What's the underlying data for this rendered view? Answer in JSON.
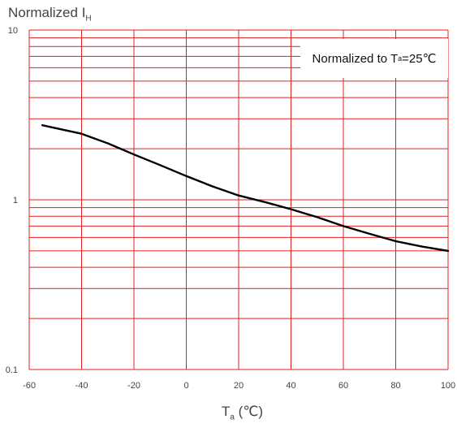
{
  "chart_data": {
    "type": "line",
    "yscale": "log",
    "ylim": [
      0.1,
      10
    ],
    "xlim": [
      -60,
      100
    ],
    "x_ticks": [
      -60,
      -40,
      -20,
      0,
      20,
      40,
      60,
      80,
      100
    ],
    "x_tick_labels": [
      "-60",
      "-40",
      "-20",
      "0",
      "20",
      "40",
      "60",
      "80",
      "100"
    ],
    "y_ticks": [
      0.1,
      1,
      10
    ],
    "y_tick_labels": [
      "0.1",
      "1",
      "10"
    ],
    "ylabel": {
      "main": "Normalized I",
      "sub": "H"
    },
    "xlabel": {
      "main": "T",
      "sub": "a",
      "unit": " (℃)"
    },
    "annotation": {
      "prefix": "Normalized to T",
      "sub": "a",
      "suffix": "=25℃"
    },
    "grid": true,
    "grid_color": "#e02020",
    "line_color": "#000000",
    "series": [
      {
        "x": [
          -55,
          -40,
          -30,
          -20,
          -10,
          0,
          10,
          20,
          30,
          40,
          50,
          60,
          70,
          80,
          90,
          100
        ],
        "values": [
          2.75,
          2.45,
          2.15,
          1.85,
          1.6,
          1.38,
          1.2,
          1.06,
          0.97,
          0.88,
          0.79,
          0.7,
          0.63,
          0.57,
          0.53,
          0.5
        ]
      }
    ]
  }
}
